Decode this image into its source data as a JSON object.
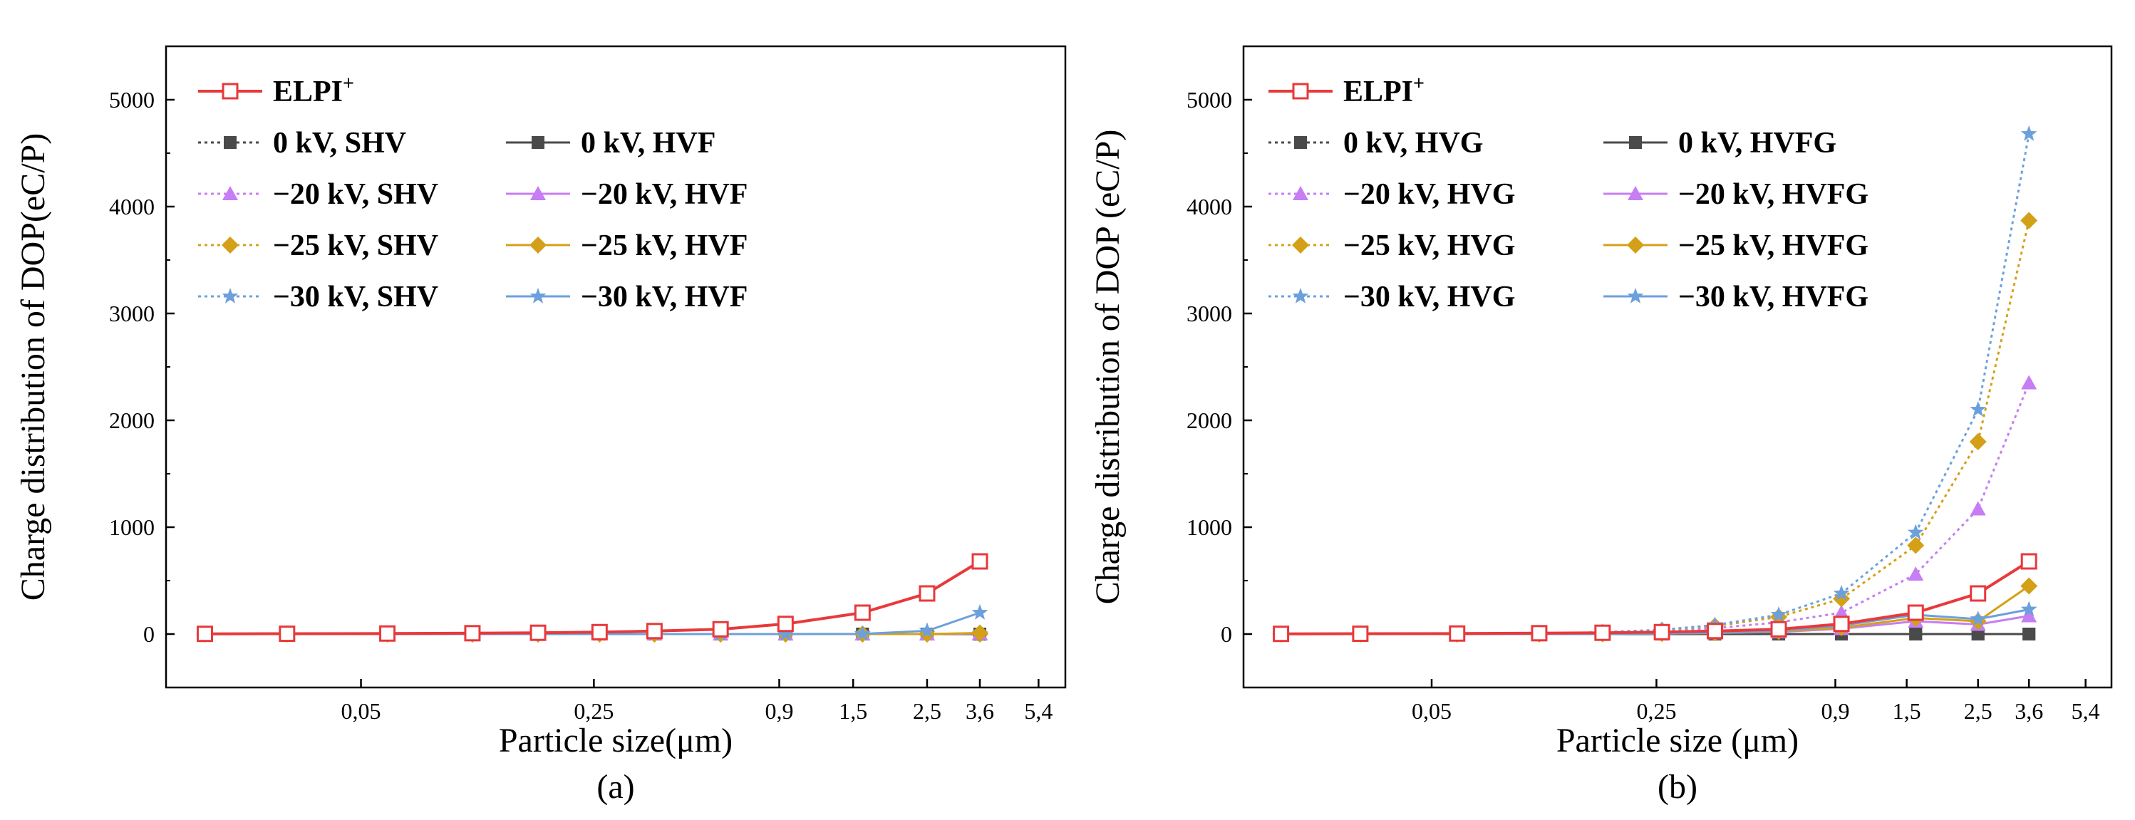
{
  "chart_data": [
    {
      "panel_label": "(a)",
      "type": "line",
      "xlabel": "Particle size(μm)",
      "ylabel": "Charge distribution of DOP(eC/P)",
      "ylim": [
        -500,
        5500
      ],
      "yticks": [
        "0",
        "1000",
        "2000",
        "3000",
        "4000",
        "5000"
      ],
      "ytick_values": [
        0,
        1000,
        2000,
        3000,
        4000,
        5000
      ],
      "x_scale": "log",
      "xlim": [
        0.013,
        6.5
      ],
      "xticks": [
        "0,05",
        "0,25",
        "0,9",
        "1,5",
        "2,5",
        "3,6",
        "5,4"
      ],
      "xtick_values": [
        0.05,
        0.25,
        0.9,
        1.5,
        2.5,
        3.6,
        5.4
      ],
      "x": [
        0.017,
        0.03,
        0.06,
        0.108,
        0.17,
        0.26,
        0.38,
        0.6,
        0.94,
        1.6,
        2.5,
        3.6
      ],
      "series": [
        {
          "name": "ELPI⁺",
          "name_text": "ELPI",
          "name_sup": "+",
          "color": "#e8393b",
          "line": "solid",
          "marker": "open-square",
          "values": [
            2,
            3,
            5,
            8,
            12,
            18,
            28,
            45,
            95,
            200,
            380,
            680
          ]
        },
        {
          "name": "0 kV, SHV",
          "color": "#4a4a4a",
          "line": "dotted",
          "marker": "square",
          "values": [
            0,
            0,
            0,
            0,
            0,
            0,
            0,
            0,
            0,
            0,
            0,
            0
          ]
        },
        {
          "name": "−20 kV, SHV",
          "color": "#c77df3",
          "line": "dotted",
          "marker": "triangle",
          "values": [
            0,
            0,
            0,
            0,
            0,
            0,
            0,
            0,
            0,
            0,
            0,
            0
          ]
        },
        {
          "name": "−25 kV, SHV",
          "color": "#d4a017",
          "line": "dotted",
          "marker": "diamond",
          "values": [
            0,
            0,
            0,
            0,
            0,
            0,
            0,
            0,
            0,
            0,
            0,
            0
          ]
        },
        {
          "name": "−30 kV, SHV",
          "color": "#6ca0dc",
          "line": "dotted",
          "marker": "star",
          "values": [
            0,
            0,
            0,
            0,
            0,
            0,
            0,
            0,
            0,
            0,
            0,
            0
          ]
        },
        {
          "name": "0 kV, HVF",
          "color": "#4a4a4a",
          "line": "solid",
          "marker": "square",
          "values": [
            0,
            0,
            0,
            0,
            0,
            0,
            0,
            0,
            0,
            0,
            0,
            0
          ]
        },
        {
          "name": "−20 kV, HVF",
          "color": "#c77df3",
          "line": "solid",
          "marker": "triangle",
          "values": [
            0,
            0,
            0,
            0,
            0,
            0,
            0,
            0,
            0,
            0,
            0,
            5
          ]
        },
        {
          "name": "−25 kV, HVF",
          "color": "#d4a017",
          "line": "solid",
          "marker": "diamond",
          "values": [
            0,
            0,
            0,
            0,
            0,
            0,
            0,
            0,
            0,
            0,
            0,
            10
          ]
        },
        {
          "name": "−30 kV, HVF",
          "color": "#6ca0dc",
          "line": "solid",
          "marker": "star",
          "values": [
            0,
            0,
            0,
            0,
            0,
            0,
            0,
            0,
            0,
            2,
            30,
            200
          ]
        }
      ]
    },
    {
      "panel_label": "(b)",
      "type": "line",
      "xlabel": "Particle size (μm)",
      "ylabel": "Charge distribution of DOP (eC/P)",
      "ylim": [
        -500,
        5500
      ],
      "yticks": [
        "0",
        "1000",
        "2000",
        "3000",
        "4000",
        "5000"
      ],
      "ytick_values": [
        0,
        1000,
        2000,
        3000,
        4000,
        5000
      ],
      "x_scale": "log",
      "xlim": [
        0.013,
        6.5
      ],
      "xticks": [
        "0,05",
        "0,25",
        "0,9",
        "1,5",
        "2,5",
        "3,6",
        "5,4"
      ],
      "xtick_values": [
        0.05,
        0.25,
        0.9,
        1.5,
        2.5,
        3.6,
        5.4
      ],
      "x": [
        0.017,
        0.03,
        0.06,
        0.108,
        0.17,
        0.26,
        0.38,
        0.6,
        0.94,
        1.6,
        2.5,
        3.6
      ],
      "series": [
        {
          "name": "ELPI⁺",
          "name_text": "ELPI",
          "name_sup": "+",
          "color": "#e8393b",
          "line": "solid",
          "marker": "open-square",
          "values": [
            2,
            3,
            5,
            8,
            12,
            18,
            28,
            45,
            95,
            200,
            380,
            680
          ]
        },
        {
          "name": "0 kV, HVG",
          "color": "#4a4a4a",
          "line": "dotted",
          "marker": "square",
          "values": [
            0,
            0,
            0,
            0,
            0,
            0,
            0,
            0,
            0,
            0,
            0,
            0
          ]
        },
        {
          "name": "−20 kV, HVG",
          "color": "#c77df3",
          "line": "dotted",
          "marker": "triangle",
          "values": [
            0,
            0,
            0,
            2,
            10,
            25,
            55,
            110,
            200,
            560,
            1170,
            2350
          ]
        },
        {
          "name": "−25 kV, HVG",
          "color": "#d4a017",
          "line": "dotted",
          "marker": "diamond",
          "values": [
            0,
            0,
            0,
            3,
            15,
            35,
            75,
            160,
            330,
            830,
            1800,
            3870
          ]
        },
        {
          "name": "−30 kV, HVG",
          "color": "#6ca0dc",
          "line": "dotted",
          "marker": "star",
          "values": [
            0,
            0,
            0,
            4,
            18,
            40,
            85,
            180,
            380,
            950,
            2100,
            4680
          ]
        },
        {
          "name": "0 kV, HVFG",
          "color": "#4a4a4a",
          "line": "solid",
          "marker": "square",
          "values": [
            0,
            0,
            0,
            0,
            0,
            0,
            0,
            0,
            0,
            0,
            0,
            0
          ]
        },
        {
          "name": "−20 kV, HVFG",
          "color": "#c77df3",
          "line": "solid",
          "marker": "triangle",
          "values": [
            0,
            0,
            0,
            0,
            2,
            5,
            10,
            20,
            50,
            120,
            90,
            170
          ]
        },
        {
          "name": "−25 kV, HVFG",
          "color": "#d4a017",
          "line": "solid",
          "marker": "diamond",
          "values": [
            0,
            0,
            0,
            0,
            2,
            5,
            10,
            25,
            60,
            150,
            120,
            450
          ]
        },
        {
          "name": "−30 kV, HVFG",
          "color": "#6ca0dc",
          "line": "solid",
          "marker": "star",
          "values": [
            0,
            0,
            0,
            0,
            2,
            5,
            12,
            30,
            80,
            180,
            140,
            230
          ]
        }
      ]
    }
  ]
}
